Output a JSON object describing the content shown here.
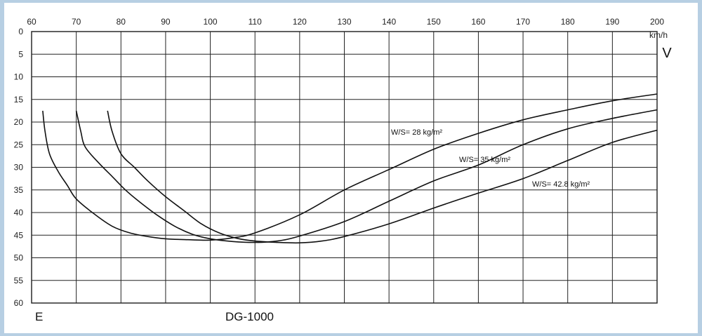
{
  "chart_data": {
    "type": "line",
    "title": "DG-1000",
    "xlabel": "V",
    "xunit": "km/h",
    "ylabel": "E",
    "xlim": [
      60,
      200
    ],
    "ylim": [
      0,
      60
    ],
    "y_inverted": true,
    "grid": true,
    "x_ticks": [
      "60",
      "70",
      "80",
      "90",
      "100",
      "110",
      "120",
      "130",
      "140",
      "150",
      "160",
      "170",
      "180",
      "190",
      "200"
    ],
    "y_ticks": [
      "0",
      "5",
      "10",
      "15",
      "20",
      "25",
      "30",
      "35",
      "40",
      "45",
      "50",
      "55",
      "60"
    ],
    "series": [
      {
        "name": "W/S= 28 kg/m²",
        "x": [
          62.5,
          63,
          64,
          66,
          68,
          70,
          74,
          78,
          82,
          86,
          90,
          95,
          100,
          105,
          110,
          120,
          130,
          140,
          150,
          160,
          170,
          180,
          190,
          200
        ],
        "y": [
          17.5,
          22,
          27,
          31,
          34,
          37,
          40.3,
          43,
          44.5,
          45.3,
          45.8,
          46,
          46.1,
          45.6,
          44.5,
          40.5,
          35,
          30.5,
          26,
          22.5,
          19.5,
          17.3,
          15.3,
          13.8
        ]
      },
      {
        "name": "W/S= 35 kg/m²",
        "x": [
          70,
          71,
          72,
          75,
          78,
          81,
          84,
          88,
          92,
          96,
          100,
          105,
          110,
          115,
          120,
          130,
          140,
          150,
          160,
          170,
          180,
          190,
          200
        ],
        "y": [
          17.5,
          22,
          25.5,
          29,
          32,
          35,
          37.5,
          40.5,
          43,
          44.8,
          45.8,
          46.4,
          46.6,
          46.3,
          45.2,
          42,
          37.5,
          33,
          29.5,
          25,
          21.5,
          19.2,
          17.3
        ]
      },
      {
        "name": "W/S= 42.8 kg/m²",
        "x": [
          77,
          78,
          80,
          83,
          86,
          90,
          94,
          98,
          102,
          106,
          110,
          115,
          120,
          125,
          130,
          140,
          150,
          160,
          170,
          180,
          190,
          200
        ],
        "y": [
          17.5,
          22,
          27,
          30,
          33,
          36.5,
          39.5,
          42.5,
          44.5,
          45.7,
          46.3,
          46.6,
          46.7,
          46.3,
          45.3,
          42.5,
          39,
          35.7,
          32.5,
          28.5,
          24.5,
          21.8
        ]
      }
    ],
    "annotations": [
      "W/S= 28 kg/m²",
      "W/S= 35 kg/m²",
      "W/S= 42.8 kg/m²"
    ]
  }
}
